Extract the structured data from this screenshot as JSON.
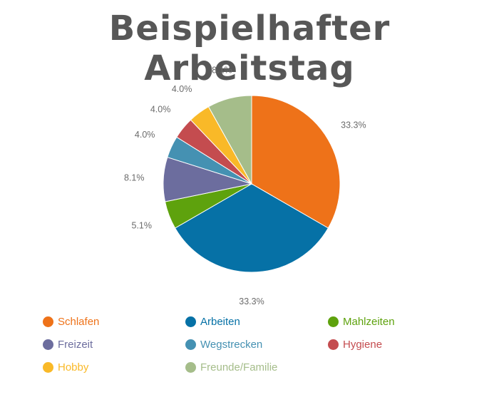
{
  "title": "Beispielhafter Arbeitstag",
  "chart_data": {
    "type": "pie",
    "title": "Beispielhafter Arbeitstag",
    "slices": [
      {
        "name": "Schlafen",
        "value": 33.3,
        "label": "33.3%",
        "color": "#EE7219"
      },
      {
        "name": "Arbeiten",
        "value": 33.3,
        "label": "33.3%",
        "color": "#0671A6"
      },
      {
        "name": "Mahlzeiten",
        "value": 5.1,
        "label": "5.1%",
        "color": "#5EA20D"
      },
      {
        "name": "Freizeit",
        "value": 8.1,
        "label": "8.1%",
        "color": "#6C6D9E"
      },
      {
        "name": "Wegstrecken",
        "value": 4.0,
        "label": "4.0%",
        "color": "#4591B2"
      },
      {
        "name": "Hygiene",
        "value": 4.0,
        "label": "4.0%",
        "color": "#C44C4F"
      },
      {
        "name": "Hobby",
        "value": 4.0,
        "label": "4.0%",
        "color": "#F9B928"
      },
      {
        "name": "Freunde/Familie",
        "value": 8.1,
        "label": "8.1%",
        "color": "#A5BD8A"
      }
    ],
    "legend_position": "bottom"
  }
}
